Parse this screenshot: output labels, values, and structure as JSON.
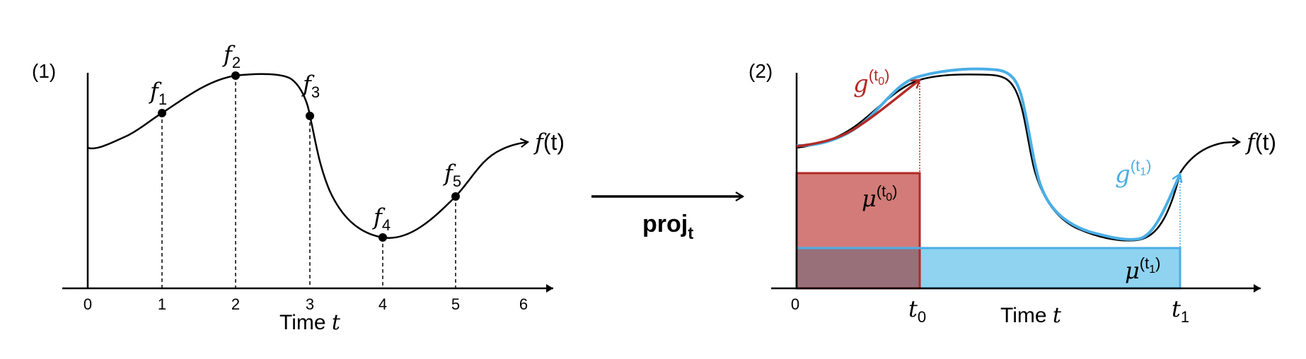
{
  "panel1": {
    "label": "(1)",
    "curve_label": "f",
    "curve_arg": "(t)",
    "x_axis_title": "Time ",
    "x_axis_var": "t",
    "ticks": [
      "0",
      "1",
      "2",
      "3",
      "4",
      "5",
      "6"
    ],
    "samples": [
      {
        "base": "f",
        "sub": "1"
      },
      {
        "base": "f",
        "sub": "2"
      },
      {
        "base": "f",
        "sub": "3"
      },
      {
        "base": "f",
        "sub": "4"
      },
      {
        "base": "f",
        "sub": "5"
      }
    ]
  },
  "arrow": {
    "label": "proj",
    "sub": "t"
  },
  "panel2": {
    "label": "(2)",
    "curve_label": "f",
    "curve_arg": "(t)",
    "x_axis_title": "Time ",
    "x_axis_var": "t",
    "origin_tick": "0",
    "t0_label": "t",
    "t0_sub": "0",
    "t1_label": "t",
    "t1_sub": "1",
    "g0": {
      "base": "g",
      "sup": "(t",
      "sup_sub": "0",
      "sup_close": ")"
    },
    "g1": {
      "base": "g",
      "sup": "(t",
      "sup_sub": "1",
      "sup_close": ")"
    },
    "mu0": {
      "base": "μ",
      "sup": "(t",
      "sup_sub": "0",
      "sup_close": ")"
    },
    "mu1": {
      "base": "μ",
      "sup": "(t",
      "sup_sub": "1",
      "sup_close": ")"
    }
  },
  "colors": {
    "red": "#b22a25",
    "red_fill": "#d37b78",
    "blue": "#4aaee6",
    "blue_fill": "#8fd3f0",
    "overlap_fill": "#98707a",
    "ink": "#000000"
  }
}
